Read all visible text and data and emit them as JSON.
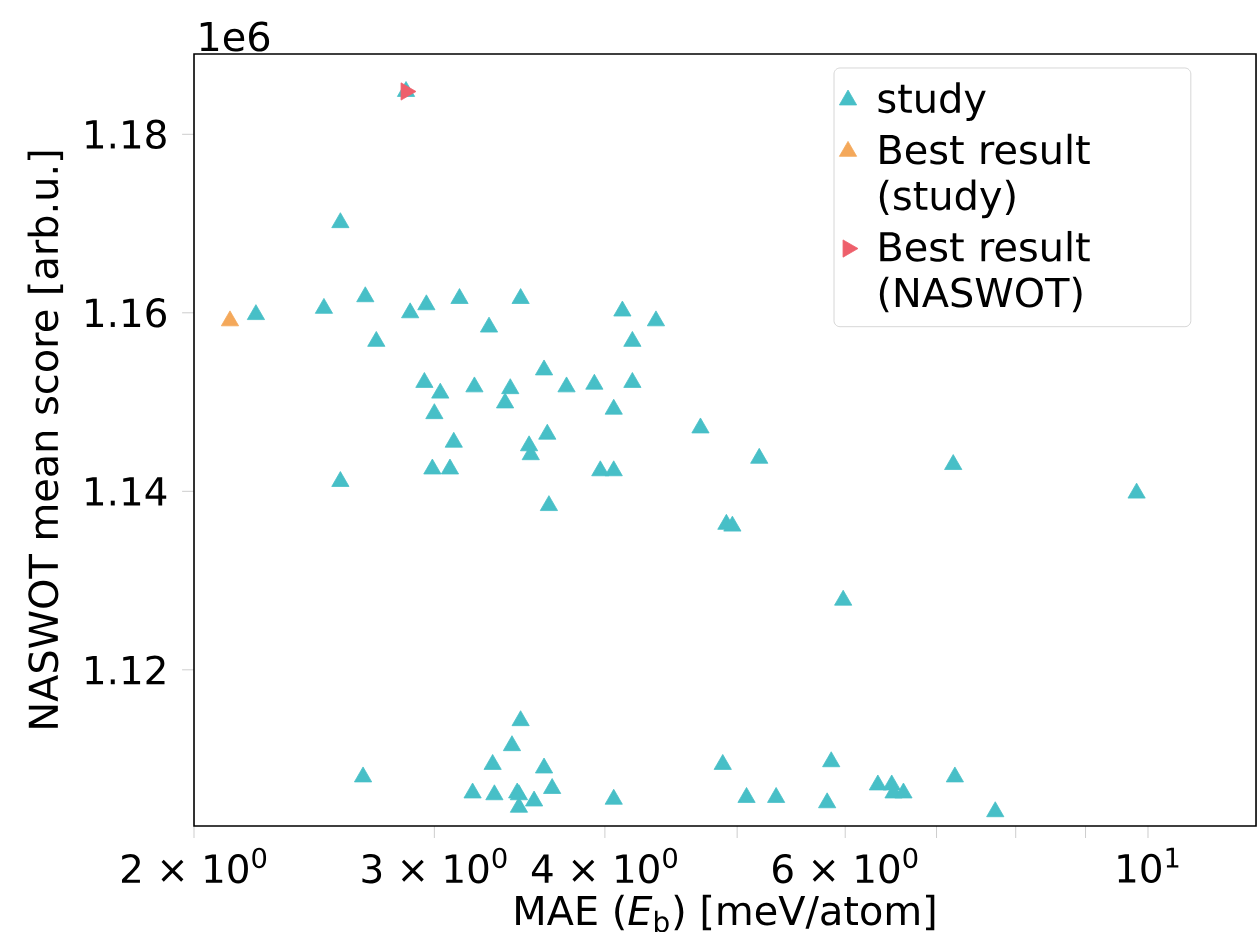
{
  "chart_data": {
    "type": "scatter",
    "xlabel": "MAE (*E*$_{b}$) [meV/atom]",
    "ylabel": "NASWOT mean score [arb.u.]",
    "annotations": [
      "1e6"
    ],
    "log": "x",
    "xlim": [
      2,
      12
    ],
    "ylim": [
      1.1025,
      1.189
    ],
    "xticks": [
      {
        "value": 2,
        "label": "2 × 10$^{0}$"
      },
      {
        "value": 3,
        "label": "3 × 10$^{0}$"
      },
      {
        "value": 4,
        "label": "4 × 10$^{0}$"
      },
      {
        "value": 5,
        "label": null
      },
      {
        "value": 6,
        "label": "6 × 10$^{0}$"
      },
      {
        "value": 7,
        "label": null
      },
      {
        "value": 8,
        "label": null
      },
      {
        "value": 9,
        "label": null
      },
      {
        "value": 10,
        "label": "10$^{1}$"
      }
    ],
    "yticks": [
      {
        "value": 1.12,
        "label": "1.12"
      },
      {
        "value": 1.14,
        "label": "1.14"
      },
      {
        "value": 1.16,
        "label": "1.16"
      },
      {
        "value": 1.18,
        "label": "1.18"
      }
    ],
    "legend": "top right",
    "grid": false,
    "series": [
      {
        "name": "study",
        "color": "#47bfc7",
        "marker": "triangle",
        "x": [
          2.86,
          2.56,
          2.22,
          2.49,
          2.67,
          2.72,
          2.88,
          2.96,
          3.13,
          3.29,
          3.47,
          4.12,
          4.19,
          4.36,
          2.95,
          3.03,
          3.0,
          3.21,
          3.41,
          3.38,
          3.61,
          3.75,
          3.93,
          4.19,
          4.06,
          4.7,
          3.1,
          3.52,
          3.53,
          3.63,
          2.99,
          3.08,
          3.97,
          4.06,
          2.56,
          3.64,
          3.47,
          3.42,
          3.31,
          2.66,
          3.61,
          3.2,
          3.32,
          3.45,
          3.46,
          3.66,
          3.55,
          3.46,
          4.06,
          4.88,
          4.91,
          5.19,
          4.96,
          7.2,
          9.81,
          5.98,
          5.08,
          5.34,
          5.86,
          5.82,
          6.34,
          6.49,
          6.51,
          6.62,
          7.22,
          7.73
        ],
        "values": [
          1.1848,
          1.1701,
          1.1598,
          1.1605,
          1.1618,
          1.1568,
          1.16,
          1.1609,
          1.1616,
          1.1584,
          1.1616,
          1.1602,
          1.1568,
          1.1591,
          1.1522,
          1.151,
          1.1487,
          1.1517,
          1.1515,
          1.1499,
          1.1536,
          1.1517,
          1.152,
          1.1522,
          1.1492,
          1.1471,
          1.1455,
          1.1451,
          1.1441,
          1.1464,
          1.1425,
          1.1425,
          1.1423,
          1.1423,
          1.1411,
          1.1384,
          1.1143,
          1.1115,
          1.1094,
          1.108,
          1.109,
          1.1062,
          1.106,
          1.1062,
          1.106,
          1.1067,
          1.1053,
          1.1046,
          1.1055,
          1.1094,
          1.1363,
          1.1437,
          1.1361,
          1.143,
          1.1398,
          1.1278,
          1.1057,
          1.1057,
          1.1097,
          1.1051,
          1.1071,
          1.1071,
          1.1062,
          1.1062,
          1.108,
          1.1041
        ]
      },
      {
        "name": "Best result (study)",
        "color": "#f4a85a",
        "marker": "triangle",
        "x": [
          2.125
        ],
        "values": [
          1.1591
        ]
      },
      {
        "name": "Best result (NASWOT)",
        "color": "#ee5f6b",
        "marker": "triangle-right",
        "x": [
          2.86
        ],
        "values": [
          1.1848
        ]
      }
    ]
  }
}
